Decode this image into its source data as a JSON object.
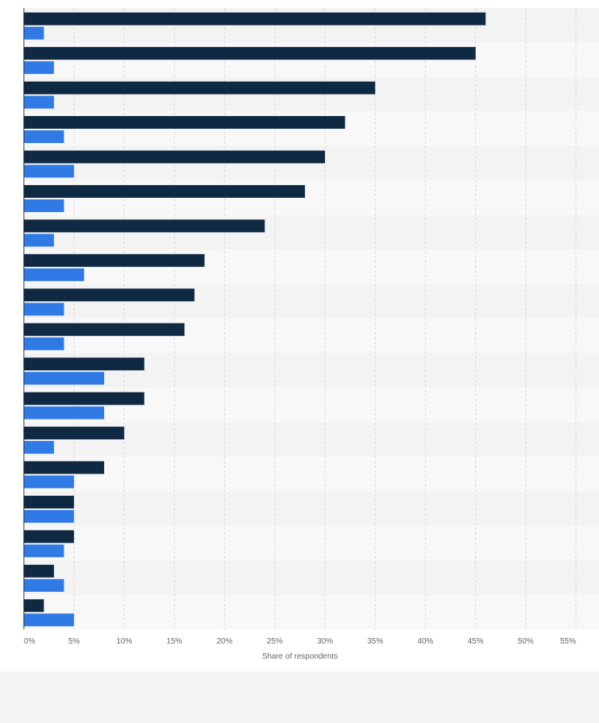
{
  "chart_data": {
    "type": "bar",
    "orientation": "horizontal",
    "categories": [
      "",
      "",
      "",
      "",
      "",
      "",
      "",
      "",
      "",
      "",
      "",
      "",
      "",
      "",
      "",
      "",
      "",
      ""
    ],
    "series": [
      {
        "color": "#0f2942",
        "values": [
          46,
          45,
          35,
          32,
          30,
          28,
          24,
          18,
          17,
          16,
          12,
          12,
          10,
          8,
          5,
          5,
          3,
          2
        ]
      },
      {
        "color": "#2f7ae5",
        "values": [
          2,
          3,
          3,
          4,
          5,
          4,
          3,
          6,
          4,
          4,
          8,
          8,
          3,
          5,
          5,
          4,
          4,
          5
        ]
      }
    ],
    "xlabel": "Share of respondents",
    "xlim": [
      0,
      55
    ],
    "xticks": [
      "0%",
      "5%",
      "10%",
      "15%",
      "20%",
      "25%",
      "30%",
      "35%",
      "40%",
      "45%",
      "50%",
      "55%"
    ],
    "grid": true,
    "legend": "none"
  }
}
